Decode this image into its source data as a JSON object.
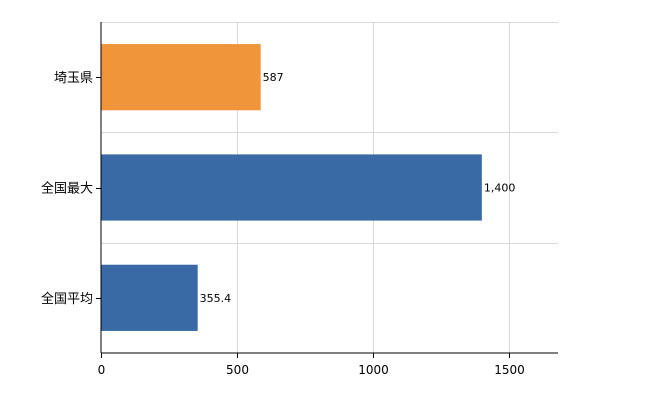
{
  "chart_data": {
    "type": "bar",
    "orientation": "horizontal",
    "categories": [
      "埼玉県",
      "全国最大",
      "全国平均"
    ],
    "values": [
      587,
      1400,
      355.4
    ],
    "value_labels": [
      "587",
      "1,400",
      "355.4"
    ],
    "bar_colors": [
      "#f0953a",
      "#3a6aa6",
      "#3a6aa6"
    ],
    "xlim": [
      0,
      1680
    ],
    "x_ticks": [
      0,
      500,
      1000,
      1500
    ],
    "x_tick_labels": [
      "0",
      "500",
      "1000",
      "1500"
    ],
    "grid": true,
    "title": "",
    "xlabel": "",
    "ylabel": ""
  }
}
